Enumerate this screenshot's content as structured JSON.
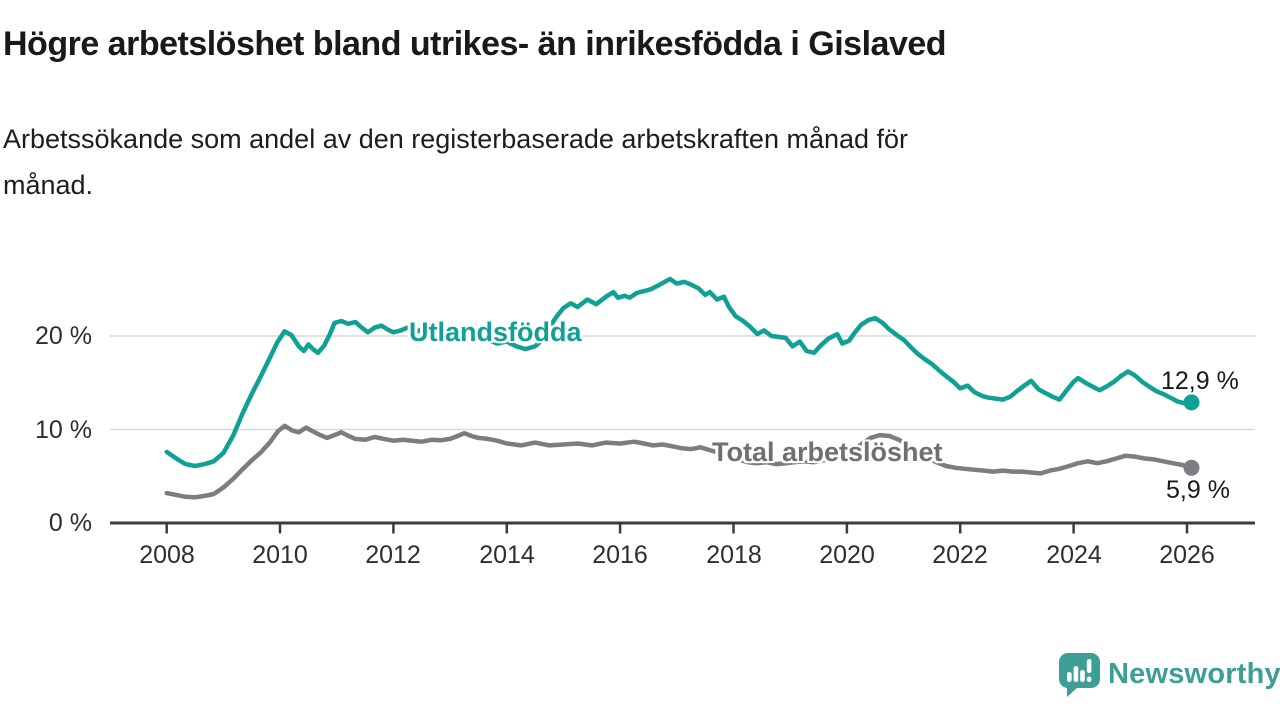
{
  "chart_data": {
    "type": "line",
    "title": "Högre arbetslöshet bland utrikes- än inrikesfödda i Gislaved",
    "subtitle_lines": {
      "line1": "Arbetssökande som andel av den registerbaserade arbetskraften månad för",
      "line2": "månad."
    },
    "unit": "%",
    "grid": "horizontal",
    "legend": "inline-labels",
    "x_axis": {
      "range": [
        2007.0,
        2027.2
      ],
      "ticks": [
        {
          "year": 2008,
          "label": "2008"
        },
        {
          "year": 2010,
          "label": "2010"
        },
        {
          "year": 2012,
          "label": "2012"
        },
        {
          "year": 2014,
          "label": "2014"
        },
        {
          "year": 2016,
          "label": "2016"
        },
        {
          "year": 2018,
          "label": "2018"
        },
        {
          "year": 2020,
          "label": "2020"
        },
        {
          "year": 2022,
          "label": "2022"
        },
        {
          "year": 2024,
          "label": "2024"
        },
        {
          "year": 2026,
          "label": "2026"
        }
      ]
    },
    "y_axis": {
      "range": [
        0,
        30
      ],
      "ticks": [
        {
          "value": 0,
          "label": "0 %"
        },
        {
          "value": 10,
          "label": "10 %"
        },
        {
          "value": 20,
          "label": "20 %"
        }
      ]
    },
    "series": [
      {
        "name": "Utlandsfödda",
        "color": "#0fa194",
        "end_label": "12,9 %",
        "end_value": 12.9,
        "points": [
          [
            2008.0,
            7.6
          ],
          [
            2008.17,
            6.9
          ],
          [
            2008.33,
            6.3
          ],
          [
            2008.5,
            6.1
          ],
          [
            2008.67,
            6.3
          ],
          [
            2008.83,
            6.6
          ],
          [
            2009.0,
            7.5
          ],
          [
            2009.17,
            9.3
          ],
          [
            2009.33,
            11.6
          ],
          [
            2009.5,
            13.8
          ],
          [
            2009.67,
            15.8
          ],
          [
            2009.83,
            17.8
          ],
          [
            2009.95,
            19.3
          ],
          [
            2010.08,
            20.5
          ],
          [
            2010.2,
            20.1
          ],
          [
            2010.33,
            18.9
          ],
          [
            2010.42,
            18.4
          ],
          [
            2010.5,
            19.1
          ],
          [
            2010.58,
            18.6
          ],
          [
            2010.67,
            18.2
          ],
          [
            2010.78,
            19.0
          ],
          [
            2010.88,
            20.2
          ],
          [
            2010.96,
            21.4
          ],
          [
            2011.08,
            21.6
          ],
          [
            2011.2,
            21.3
          ],
          [
            2011.33,
            21.5
          ],
          [
            2011.42,
            21.0
          ],
          [
            2011.55,
            20.4
          ],
          [
            2011.67,
            20.9
          ],
          [
            2011.79,
            21.1
          ],
          [
            2011.9,
            20.7
          ],
          [
            2012.0,
            20.4
          ],
          [
            2012.13,
            20.6
          ],
          [
            2012.25,
            20.9
          ],
          [
            2012.38,
            20.4
          ],
          [
            2012.5,
            20.7
          ],
          [
            2012.63,
            20.3
          ],
          [
            2012.75,
            20.5
          ],
          [
            2012.88,
            20.7
          ],
          [
            2013.0,
            20.5
          ],
          [
            2013.17,
            20.1
          ],
          [
            2013.33,
            20.4
          ],
          [
            2013.5,
            20.0
          ],
          [
            2013.67,
            19.6
          ],
          [
            2013.83,
            19.2
          ],
          [
            2014.0,
            19.4
          ],
          [
            2014.17,
            18.9
          ],
          [
            2014.33,
            18.6
          ],
          [
            2014.5,
            18.9
          ],
          [
            2014.63,
            19.6
          ],
          [
            2014.75,
            20.9
          ],
          [
            2014.88,
            22.1
          ],
          [
            2015.0,
            23.0
          ],
          [
            2015.13,
            23.5
          ],
          [
            2015.25,
            23.1
          ],
          [
            2015.42,
            23.9
          ],
          [
            2015.58,
            23.4
          ],
          [
            2015.75,
            24.2
          ],
          [
            2015.88,
            24.7
          ],
          [
            2015.96,
            24.1
          ],
          [
            2016.08,
            24.3
          ],
          [
            2016.17,
            24.1
          ],
          [
            2016.29,
            24.6
          ],
          [
            2016.42,
            24.8
          ],
          [
            2016.54,
            25.0
          ],
          [
            2016.67,
            25.4
          ],
          [
            2016.79,
            25.8
          ],
          [
            2016.88,
            26.1
          ],
          [
            2017.0,
            25.6
          ],
          [
            2017.13,
            25.8
          ],
          [
            2017.25,
            25.5
          ],
          [
            2017.38,
            25.1
          ],
          [
            2017.5,
            24.4
          ],
          [
            2017.58,
            24.7
          ],
          [
            2017.71,
            23.9
          ],
          [
            2017.83,
            24.2
          ],
          [
            2017.92,
            23.1
          ],
          [
            2018.04,
            22.1
          ],
          [
            2018.17,
            21.6
          ],
          [
            2018.29,
            21.0
          ],
          [
            2018.42,
            20.2
          ],
          [
            2018.54,
            20.6
          ],
          [
            2018.67,
            20.0
          ],
          [
            2018.79,
            19.9
          ],
          [
            2018.92,
            19.8
          ],
          [
            2019.04,
            18.9
          ],
          [
            2019.17,
            19.4
          ],
          [
            2019.29,
            18.4
          ],
          [
            2019.42,
            18.2
          ],
          [
            2019.54,
            19.0
          ],
          [
            2019.67,
            19.7
          ],
          [
            2019.83,
            20.2
          ],
          [
            2019.92,
            19.2
          ],
          [
            2020.04,
            19.5
          ],
          [
            2020.13,
            20.3
          ],
          [
            2020.25,
            21.2
          ],
          [
            2020.38,
            21.7
          ],
          [
            2020.5,
            21.9
          ],
          [
            2020.63,
            21.4
          ],
          [
            2020.75,
            20.7
          ],
          [
            2020.88,
            20.1
          ],
          [
            2021.0,
            19.6
          ],
          [
            2021.13,
            18.8
          ],
          [
            2021.25,
            18.1
          ],
          [
            2021.38,
            17.5
          ],
          [
            2021.5,
            17.0
          ],
          [
            2021.63,
            16.3
          ],
          [
            2021.75,
            15.7
          ],
          [
            2021.88,
            15.1
          ],
          [
            2022.0,
            14.4
          ],
          [
            2022.13,
            14.7
          ],
          [
            2022.25,
            14.0
          ],
          [
            2022.38,
            13.6
          ],
          [
            2022.5,
            13.4
          ],
          [
            2022.63,
            13.3
          ],
          [
            2022.75,
            13.2
          ],
          [
            2022.88,
            13.5
          ],
          [
            2023.0,
            14.1
          ],
          [
            2023.13,
            14.7
          ],
          [
            2023.25,
            15.2
          ],
          [
            2023.38,
            14.3
          ],
          [
            2023.5,
            13.9
          ],
          [
            2023.63,
            13.5
          ],
          [
            2023.75,
            13.2
          ],
          [
            2023.88,
            14.2
          ],
          [
            2024.0,
            15.1
          ],
          [
            2024.08,
            15.5
          ],
          [
            2024.21,
            15.0
          ],
          [
            2024.33,
            14.6
          ],
          [
            2024.46,
            14.2
          ],
          [
            2024.58,
            14.6
          ],
          [
            2024.71,
            15.1
          ],
          [
            2024.83,
            15.7
          ],
          [
            2024.96,
            16.2
          ],
          [
            2025.08,
            15.8
          ],
          [
            2025.21,
            15.1
          ],
          [
            2025.33,
            14.6
          ],
          [
            2025.46,
            14.1
          ],
          [
            2025.58,
            13.8
          ],
          [
            2025.71,
            13.4
          ],
          [
            2025.83,
            13.0
          ],
          [
            2025.96,
            12.8
          ],
          [
            2026.08,
            12.9
          ]
        ]
      },
      {
        "name": "Total arbetslöshet",
        "color": "#7c7c81",
        "end_label": "5,9 %",
        "end_value": 5.9,
        "points": [
          [
            2008.0,
            3.2
          ],
          [
            2008.17,
            3.0
          ],
          [
            2008.33,
            2.8
          ],
          [
            2008.5,
            2.75
          ],
          [
            2008.67,
            2.9
          ],
          [
            2008.83,
            3.1
          ],
          [
            2009.0,
            3.8
          ],
          [
            2009.17,
            4.7
          ],
          [
            2009.33,
            5.7
          ],
          [
            2009.5,
            6.7
          ],
          [
            2009.67,
            7.6
          ],
          [
            2009.83,
            8.7
          ],
          [
            2009.96,
            9.8
          ],
          [
            2010.08,
            10.4
          ],
          [
            2010.21,
            9.9
          ],
          [
            2010.33,
            9.7
          ],
          [
            2010.46,
            10.2
          ],
          [
            2010.58,
            9.8
          ],
          [
            2010.71,
            9.4
          ],
          [
            2010.83,
            9.1
          ],
          [
            2010.96,
            9.4
          ],
          [
            2011.08,
            9.7
          ],
          [
            2011.21,
            9.3
          ],
          [
            2011.33,
            9.0
          ],
          [
            2011.5,
            8.9
          ],
          [
            2011.67,
            9.2
          ],
          [
            2011.83,
            9.0
          ],
          [
            2012.0,
            8.8
          ],
          [
            2012.17,
            8.9
          ],
          [
            2012.33,
            8.8
          ],
          [
            2012.5,
            8.7
          ],
          [
            2012.67,
            8.9
          ],
          [
            2012.83,
            8.85
          ],
          [
            2013.0,
            9.0
          ],
          [
            2013.13,
            9.3
          ],
          [
            2013.25,
            9.6
          ],
          [
            2013.38,
            9.3
          ],
          [
            2013.5,
            9.1
          ],
          [
            2013.67,
            9.0
          ],
          [
            2013.83,
            8.8
          ],
          [
            2014.0,
            8.5
          ],
          [
            2014.25,
            8.3
          ],
          [
            2014.5,
            8.6
          ],
          [
            2014.75,
            8.3
          ],
          [
            2015.0,
            8.4
          ],
          [
            2015.25,
            8.5
          ],
          [
            2015.5,
            8.3
          ],
          [
            2015.75,
            8.6
          ],
          [
            2016.0,
            8.5
          ],
          [
            2016.25,
            8.7
          ],
          [
            2016.42,
            8.5
          ],
          [
            2016.58,
            8.3
          ],
          [
            2016.75,
            8.4
          ],
          [
            2016.92,
            8.2
          ],
          [
            2017.08,
            8.0
          ],
          [
            2017.25,
            7.9
          ],
          [
            2017.42,
            8.1
          ],
          [
            2017.58,
            7.8
          ],
          [
            2017.75,
            7.5
          ],
          [
            2017.92,
            7.2
          ],
          [
            2018.08,
            6.8
          ],
          [
            2018.25,
            6.5
          ],
          [
            2018.42,
            6.4
          ],
          [
            2018.58,
            6.5
          ],
          [
            2018.75,
            6.3
          ],
          [
            2018.92,
            6.4
          ],
          [
            2019.08,
            6.5
          ],
          [
            2019.25,
            6.6
          ],
          [
            2019.42,
            6.5
          ],
          [
            2019.58,
            6.7
          ],
          [
            2019.75,
            6.9
          ],
          [
            2019.92,
            7.1
          ],
          [
            2020.08,
            7.6
          ],
          [
            2020.25,
            8.4
          ],
          [
            2020.42,
            9.1
          ],
          [
            2020.58,
            9.4
          ],
          [
            2020.75,
            9.3
          ],
          [
            2020.92,
            8.9
          ],
          [
            2021.08,
            8.3
          ],
          [
            2021.25,
            7.6
          ],
          [
            2021.42,
            7.0
          ],
          [
            2021.58,
            6.5
          ],
          [
            2021.75,
            6.1
          ],
          [
            2021.92,
            5.9
          ],
          [
            2022.08,
            5.8
          ],
          [
            2022.25,
            5.7
          ],
          [
            2022.42,
            5.6
          ],
          [
            2022.58,
            5.5
          ],
          [
            2022.75,
            5.6
          ],
          [
            2022.92,
            5.5
          ],
          [
            2023.08,
            5.5
          ],
          [
            2023.25,
            5.4
          ],
          [
            2023.42,
            5.3
          ],
          [
            2023.58,
            5.6
          ],
          [
            2023.75,
            5.8
          ],
          [
            2023.92,
            6.1
          ],
          [
            2024.08,
            6.4
          ],
          [
            2024.25,
            6.6
          ],
          [
            2024.42,
            6.4
          ],
          [
            2024.58,
            6.6
          ],
          [
            2024.75,
            6.9
          ],
          [
            2024.92,
            7.2
          ],
          [
            2025.08,
            7.1
          ],
          [
            2025.25,
            6.9
          ],
          [
            2025.42,
            6.8
          ],
          [
            2025.58,
            6.6
          ],
          [
            2025.75,
            6.4
          ],
          [
            2025.92,
            6.2
          ],
          [
            2026.08,
            5.9
          ]
        ]
      }
    ]
  },
  "logo": {
    "text": "Newsworthy",
    "icon": "newsworthy-speech-bubble-bars-icon"
  },
  "colors": {
    "accent_teal": "#0fa194",
    "series_gray": "#7c7c81",
    "label_gray": "#6f6f74",
    "logo_teal": "#3d9e96",
    "grid": "#d9d9d9",
    "axis": "#3c3c3c",
    "tick_text": "#2e2e2e",
    "title_text": "#191919"
  }
}
